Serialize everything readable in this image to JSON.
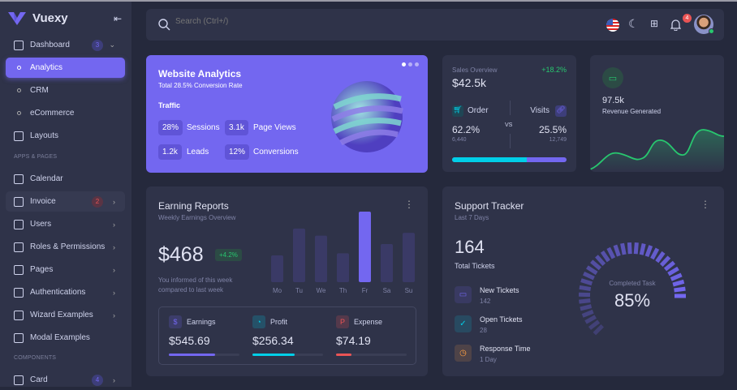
{
  "brand": {
    "name": "Vuexy",
    "color": "#7367f0"
  },
  "sidebar": {
    "items": [
      {
        "label": "Dashboard",
        "icon": "smart-home-icon",
        "badge": "3"
      },
      {
        "label": "Analytics",
        "active": true
      },
      {
        "label": "CRM"
      },
      {
        "label": "eCommerce"
      },
      {
        "label": "Layouts",
        "icon": "layout-sidebar-icon"
      },
      {
        "label": "Calendar",
        "icon": "calendar-icon"
      },
      {
        "label": "Invoice",
        "icon": "file-dollar-icon",
        "badge": "2"
      },
      {
        "label": "Users",
        "icon": "users-icon"
      },
      {
        "label": "Roles & Permissions",
        "icon": "settings-icon"
      },
      {
        "label": "Pages",
        "icon": "file-icon"
      },
      {
        "label": "Authentications",
        "icon": "lock-icon"
      },
      {
        "label": "Wizard Examples",
        "icon": "forms-icon"
      },
      {
        "label": "Modal Examples",
        "icon": "square-icon"
      },
      {
        "label": "Card",
        "icon": "id-card-icon",
        "badge": "4"
      }
    ],
    "sections": [
      "APPS & PAGES",
      "COMPONENTS"
    ]
  },
  "header": {
    "search_placeholder": "Search (Ctrl+/)",
    "notifications": "4"
  },
  "analytics": {
    "title": "Website Analytics",
    "subtitle": "Total 28.5% Conversion Rate",
    "traffic": "Traffic",
    "stats": [
      {
        "value": "28%",
        "label": "Sessions"
      },
      {
        "value": "3.1k",
        "label": "Page Views"
      },
      {
        "value": "1.2k",
        "label": "Leads"
      },
      {
        "value": "12%",
        "label": "Conversions"
      }
    ]
  },
  "sales": {
    "title": "Sales Overview",
    "change": "+18.2%",
    "value": "$42.5k",
    "order_label": "Order",
    "order_pct": "62.2%",
    "order_count": "6,440",
    "vs": "VS",
    "visits_label": "Visits",
    "visits_pct": "25.5%",
    "visits_count": "12,749",
    "order_share": 0.65
  },
  "revenue": {
    "value": "97.5k",
    "label": "Revenue Generated",
    "color": "#28c76f"
  },
  "earning": {
    "title": "Earning Reports",
    "subtitle": "Weekly Earnings Overview",
    "value": "$468",
    "change": "+4.2%",
    "note1": "You informed of this week",
    "note2": "compared to last week",
    "chart_data": {
      "type": "bar",
      "categories": [
        "Mo",
        "Tu",
        "We",
        "Th",
        "Fr",
        "Sa",
        "Su"
      ],
      "values": [
        38,
        76,
        66,
        41,
        100,
        54,
        70
      ],
      "highlight": "Fr"
    },
    "stats": [
      {
        "label": "Earnings",
        "value": "$545.69",
        "progress": 0.65,
        "color": "#7367f0",
        "icon": "currency-dollar-icon"
      },
      {
        "label": "Profit",
        "value": "$256.34",
        "progress": 0.6,
        "color": "#00cfe8",
        "icon": "chart-pie-icon"
      },
      {
        "label": "Expense",
        "value": "$74.19",
        "progress": 0.22,
        "color": "#ea5455",
        "icon": "brand-paypal-icon"
      }
    ]
  },
  "support": {
    "title": "Support Tracker",
    "subtitle": "Last 7 Days",
    "total": "164",
    "total_label": "Total Tickets",
    "items": [
      {
        "label": "New Tickets",
        "value": "142",
        "color": "#7367f0"
      },
      {
        "label": "Open Tickets",
        "value": "28",
        "color": "#00cfe8"
      },
      {
        "label": "Response Time",
        "value": "1 Day",
        "color": "#ff9f43"
      }
    ],
    "gauge_label": "Completed Task",
    "gauge_value": "85%",
    "gauge_pct": 85
  }
}
